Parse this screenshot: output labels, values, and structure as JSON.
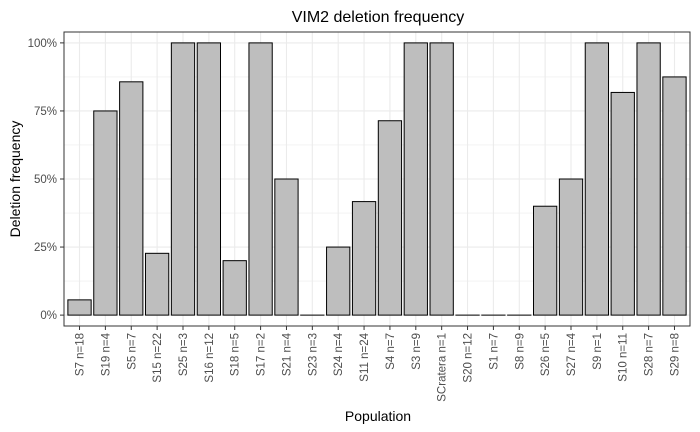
{
  "chart_data": {
    "type": "bar",
    "title": "VIM2 deletion frequency",
    "xlabel": "Population",
    "ylabel": "Deletion frequency",
    "categories": [
      "S7 n=18",
      "S19 n=4",
      "S5 n=7",
      "S15 n=22",
      "S25 n=3",
      "S16 n=12",
      "S18 n=5",
      "S17 n=2",
      "S21 n=4",
      "S23 n=3",
      "S24 n=4",
      "S11 n=24",
      "S4 n=7",
      "S3 n=9",
      "SCratera n=1",
      "S20 n=12",
      "S1 n=7",
      "S8 n=9",
      "S26 n=5",
      "S27 n=4",
      "S9 n=1",
      "S10 n=11",
      "S28 n=7",
      "S29 n=8"
    ],
    "values": [
      0.056,
      0.75,
      0.857,
      0.227,
      1.0,
      1.0,
      0.2,
      1.0,
      0.5,
      0.0,
      0.25,
      0.417,
      0.714,
      1.0,
      1.0,
      0.0,
      0.0,
      0.0,
      0.4,
      0.5,
      1.0,
      0.818,
      1.0,
      0.875
    ],
    "ylim": [
      -0.04,
      1.04
    ],
    "yticks": [
      0,
      0.25,
      0.5,
      0.75,
      1.0
    ],
    "ytick_labels": [
      "0%",
      "25%",
      "50%",
      "75%",
      "100%"
    ],
    "grid": true,
    "bar_fill": "#bebebe",
    "bar_stroke": "#000000",
    "grid_color": "#ebebeb"
  }
}
